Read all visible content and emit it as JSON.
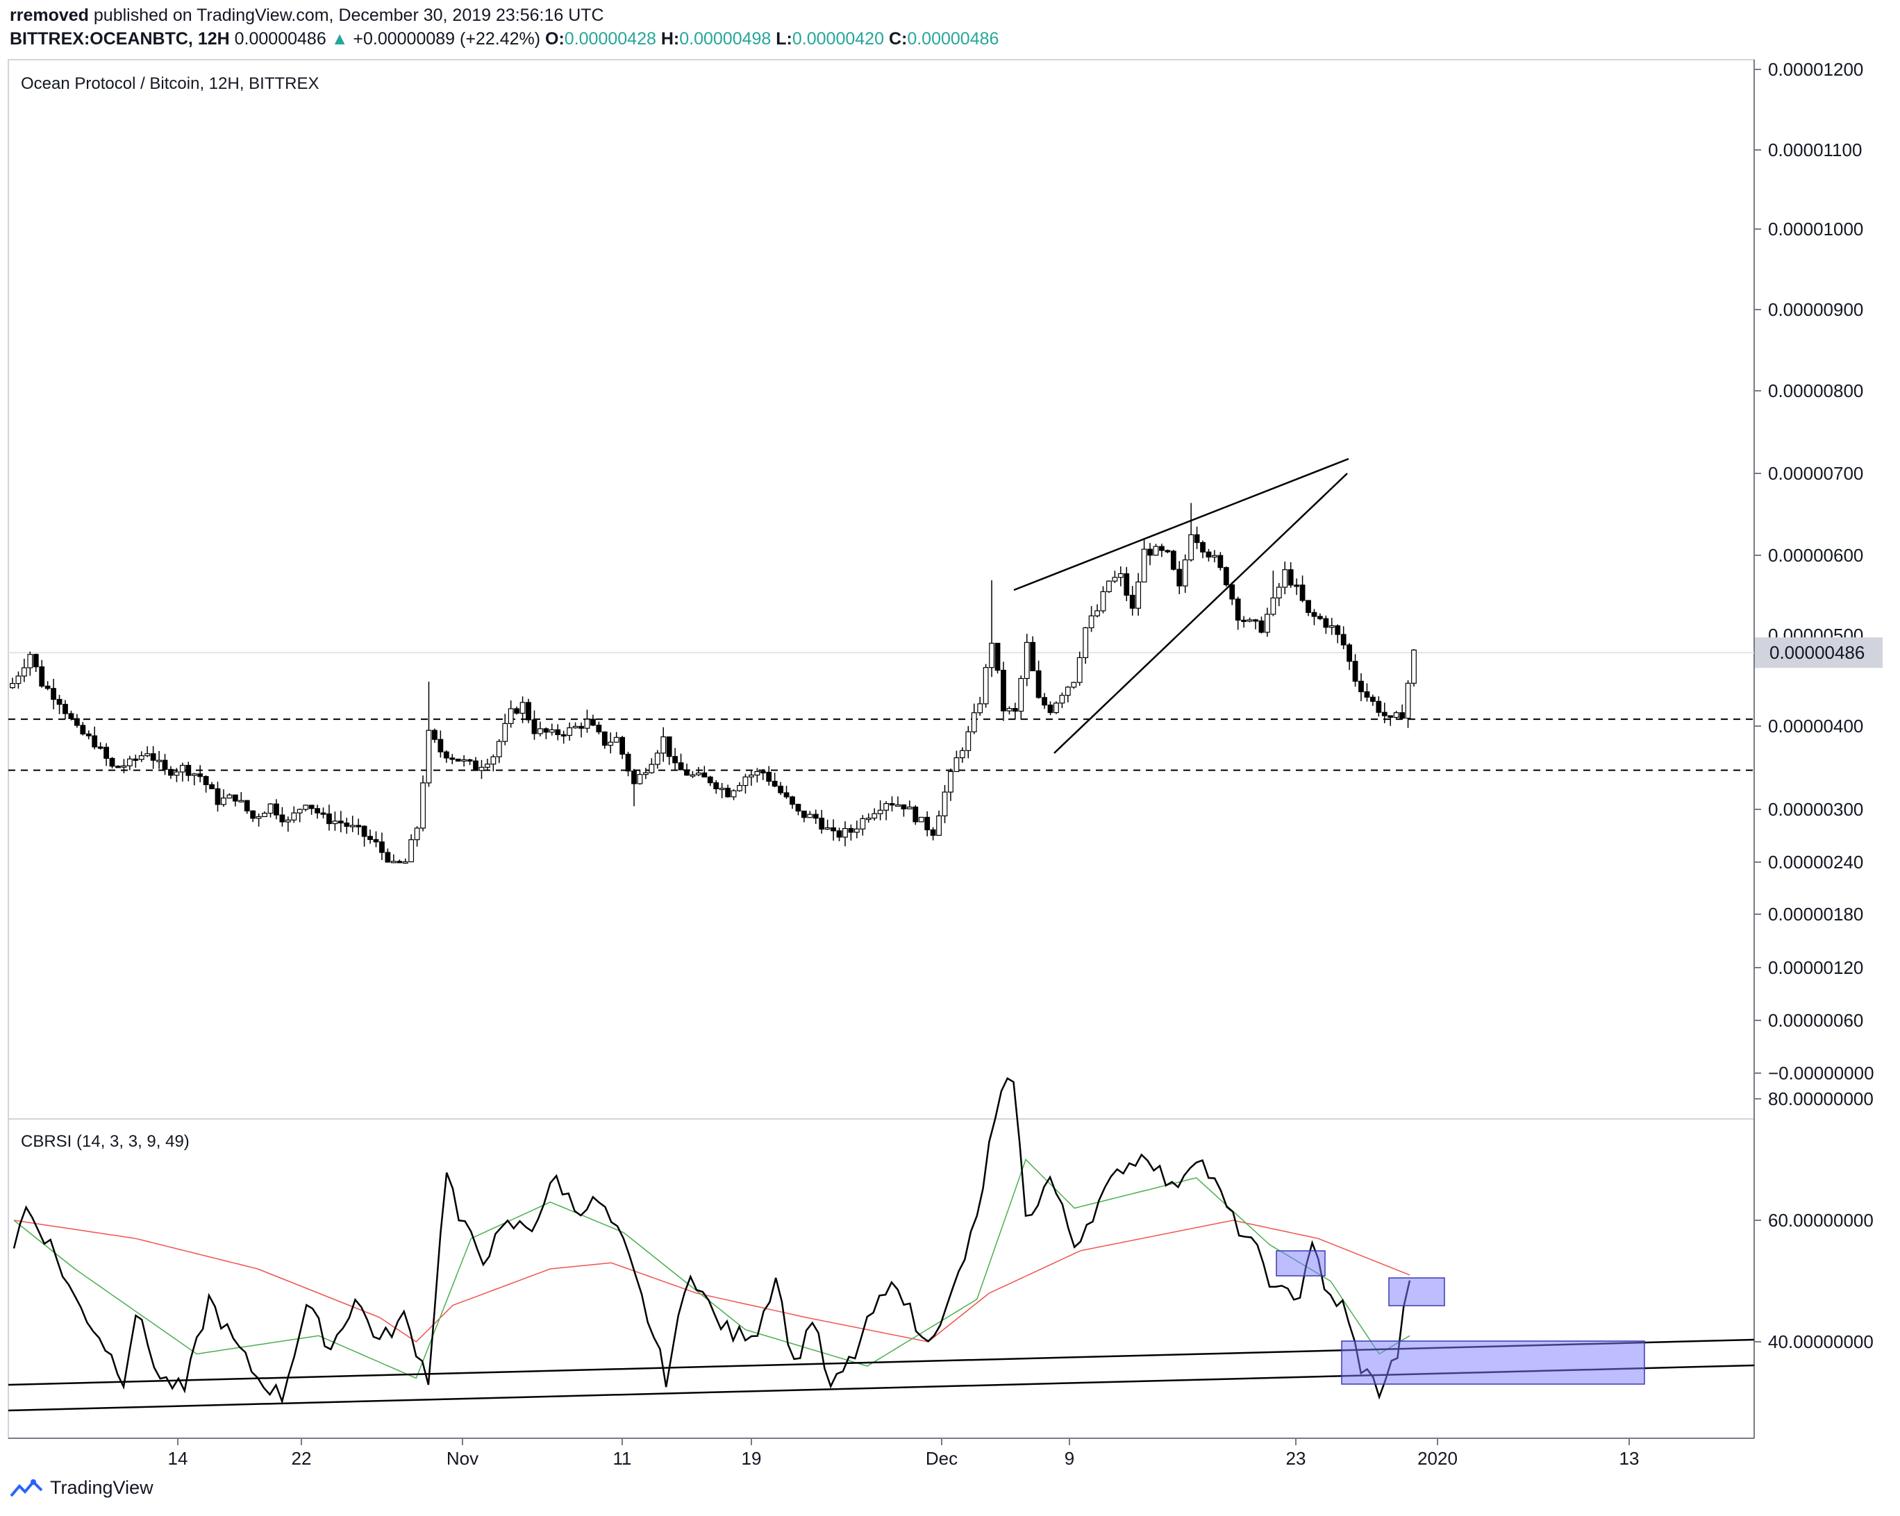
{
  "header": {
    "user": "rremoved",
    "published": "published on TradingView.com, December 30, 2019 23:56:16 UTC",
    "symbol": "BITTREX:OCEANBTC, 12H",
    "last": "0.00000486",
    "change_arrow": "▲",
    "change": "+0.00000089 (+22.42%)",
    "o_label": "O:",
    "o": "0.00000428",
    "h_label": "H:",
    "h": "0.00000498",
    "l_label": "L:",
    "l": "0.00000420",
    "c_label": "C:",
    "c": "0.00000486"
  },
  "brand": {
    "name": "TradingView",
    "icon": "tradingview-logo-icon"
  },
  "colors": {
    "up": "#ffffff",
    "down": "#000000",
    "teal": "#26a69a",
    "signal_green": "#4caf50",
    "ma_red": "#ef5350",
    "box_fill": "#7b7bff"
  },
  "chart_data": [
    {
      "type": "candlestick",
      "title": "Ocean Protocol / Bitcoin, 12H, BITTREX",
      "y_ticks": [
        "0.00001200",
        "0.00001100",
        "0.00001000",
        "0.00000900",
        "0.00000800",
        "0.00000700",
        "0.00000600",
        "0.00000400",
        "0.00000300",
        "0.00000240",
        "0.00000180",
        "0.00000120",
        "0.00000060",
        "−0.00000000"
      ],
      "y_hidden_tick": "0.00000500",
      "price_tag": "0.00000486",
      "x_ticks": [
        "14",
        "22",
        "Nov",
        "11",
        "19",
        "Dec",
        "9",
        "23",
        "2020",
        "13"
      ],
      "horizontal_levels": [
        4.08e-06,
        3.47e-06
      ],
      "close_anchors": [
        [
          0,
          4.5
        ],
        [
          3,
          4.85
        ],
        [
          5,
          4.5
        ],
        [
          8,
          4.3
        ],
        [
          11,
          3.95
        ],
        [
          14,
          3.8
        ],
        [
          17,
          3.5
        ],
        [
          20,
          3.55
        ],
        [
          23,
          3.7
        ],
        [
          26,
          3.45
        ],
        [
          29,
          3.5
        ],
        [
          32,
          3.4
        ],
        [
          35,
          3.1
        ],
        [
          38,
          3.15
        ],
        [
          41,
          2.9
        ],
        [
          44,
          3.05
        ],
        [
          47,
          2.85
        ],
        [
          50,
          3.1
        ],
        [
          53,
          2.9
        ],
        [
          56,
          2.85
        ],
        [
          59,
          2.75
        ],
        [
          62,
          2.6
        ],
        [
          65,
          2.35
        ],
        [
          67,
          2.4
        ],
        [
          69,
          2.8
        ],
        [
          71,
          3.9
        ],
        [
          73,
          3.7
        ],
        [
          76,
          3.6
        ],
        [
          79,
          3.5
        ],
        [
          82,
          3.65
        ],
        [
          85,
          4.15
        ],
        [
          87,
          4.25
        ],
        [
          89,
          3.95
        ],
        [
          92,
          3.9
        ],
        [
          95,
          3.95
        ],
        [
          98,
          4.05
        ],
        [
          101,
          3.8
        ],
        [
          103,
          3.85
        ],
        [
          106,
          3.3
        ],
        [
          109,
          3.6
        ],
        [
          111,
          3.85
        ],
        [
          113,
          3.5
        ],
        [
          116,
          3.4
        ],
        [
          119,
          3.35
        ],
        [
          122,
          3.2
        ],
        [
          125,
          3.4
        ],
        [
          128,
          3.45
        ],
        [
          131,
          3.2
        ],
        [
          134,
          2.95
        ],
        [
          137,
          2.9
        ],
        [
          140,
          2.7
        ],
        [
          143,
          2.75
        ],
        [
          146,
          2.95
        ],
        [
          149,
          3.1
        ],
        [
          152,
          3.05
        ],
        [
          155,
          2.85
        ],
        [
          157,
          2.75
        ],
        [
          159,
          3.2
        ],
        [
          161,
          3.6
        ],
        [
          163,
          3.9
        ],
        [
          165,
          4.3
        ],
        [
          167,
          5.0
        ],
        [
          169,
          4.2
        ],
        [
          171,
          4.15
        ],
        [
          173,
          4.95
        ],
        [
          175,
          4.3
        ],
        [
          177,
          4.2
        ],
        [
          179,
          4.4
        ],
        [
          181,
          4.55
        ],
        [
          183,
          5.15
        ],
        [
          185,
          5.35
        ],
        [
          187,
          5.7
        ],
        [
          189,
          5.75
        ],
        [
          191,
          5.35
        ],
        [
          193,
          6.05
        ],
        [
          195,
          6.05
        ],
        [
          197,
          6.0
        ],
        [
          199,
          5.6
        ],
        [
          201,
          6.3
        ],
        [
          203,
          6.1
        ],
        [
          205,
          5.95
        ],
        [
          207,
          5.7
        ],
        [
          209,
          5.3
        ],
        [
          211,
          5.2
        ],
        [
          213,
          5.15
        ],
        [
          215,
          5.45
        ],
        [
          217,
          5.8
        ],
        [
          219,
          5.6
        ],
        [
          221,
          5.3
        ],
        [
          223,
          5.25
        ],
        [
          225,
          5.15
        ],
        [
          227,
          4.95
        ],
        [
          229,
          4.55
        ],
        [
          231,
          4.35
        ],
        [
          233,
          4.2
        ],
        [
          235,
          4.05
        ],
        [
          237,
          4.15
        ],
        [
          239,
          4.86
        ]
      ]
    },
    {
      "type": "line",
      "title": "CBRSI (14, 3, 3, 9, 49)",
      "y_ticks": [
        "80.00000000",
        "60.00000000",
        "40.00000000"
      ],
      "rsi_anchors": [
        [
          0,
          56
        ],
        [
          2,
          62
        ],
        [
          6,
          56
        ],
        [
          10,
          47
        ],
        [
          14,
          41
        ],
        [
          18,
          34
        ],
        [
          20,
          45
        ],
        [
          24,
          34
        ],
        [
          28,
          32
        ],
        [
          32,
          47
        ],
        [
          36,
          40
        ],
        [
          40,
          34
        ],
        [
          44,
          31
        ],
        [
          48,
          46
        ],
        [
          52,
          39
        ],
        [
          56,
          47
        ],
        [
          60,
          40
        ],
        [
          64,
          44
        ],
        [
          68,
          34
        ],
        [
          71,
          69
        ],
        [
          73,
          60
        ],
        [
          77,
          54
        ],
        [
          81,
          59
        ],
        [
          85,
          59
        ],
        [
          89,
          67
        ],
        [
          92,
          62
        ],
        [
          96,
          63
        ],
        [
          100,
          56
        ],
        [
          104,
          44
        ],
        [
          107,
          34
        ],
        [
          111,
          52
        ],
        [
          115,
          44
        ],
        [
          118,
          41
        ],
        [
          122,
          42
        ],
        [
          125,
          51
        ],
        [
          128,
          36
        ],
        [
          131,
          44
        ],
        [
          134,
          32
        ],
        [
          138,
          38
        ],
        [
          141,
          45
        ],
        [
          145,
          50
        ],
        [
          149,
          40
        ],
        [
          153,
          45
        ],
        [
          156,
          54
        ],
        [
          158,
          60
        ],
        [
          160,
          72
        ],
        [
          162,
          80
        ],
        [
          164,
          84
        ],
        [
          166,
          60
        ],
        [
          170,
          67
        ],
        [
          174,
          56
        ],
        [
          178,
          63
        ],
        [
          182,
          69
        ],
        [
          186,
          71
        ],
        [
          190,
          65
        ],
        [
          194,
          71
        ],
        [
          197,
          66
        ],
        [
          200,
          60
        ],
        [
          203,
          56
        ],
        [
          205,
          53
        ],
        [
          207,
          48
        ],
        [
          211,
          48
        ],
        [
          213,
          57
        ],
        [
          215,
          48
        ],
        [
          218,
          46
        ],
        [
          221,
          36
        ],
        [
          224,
          32
        ],
        [
          227,
          38
        ],
        [
          229,
          51
        ]
      ],
      "ma_anchors": [
        [
          0,
          60
        ],
        [
          20,
          57
        ],
        [
          40,
          52
        ],
        [
          60,
          44
        ],
        [
          66,
          40
        ],
        [
          72,
          46
        ],
        [
          88,
          52
        ],
        [
          98,
          53
        ],
        [
          112,
          48
        ],
        [
          130,
          44
        ],
        [
          150,
          40
        ],
        [
          160,
          48
        ],
        [
          175,
          55
        ],
        [
          200,
          60
        ],
        [
          214,
          57
        ],
        [
          229,
          51
        ]
      ],
      "signal_anchors": [
        [
          0,
          60
        ],
        [
          10,
          52
        ],
        [
          30,
          38
        ],
        [
          50,
          41
        ],
        [
          66,
          34
        ],
        [
          75,
          57
        ],
        [
          88,
          63
        ],
        [
          100,
          58
        ],
        [
          120,
          42
        ],
        [
          140,
          36
        ],
        [
          158,
          47
        ],
        [
          166,
          70
        ],
        [
          174,
          62
        ],
        [
          194,
          67
        ],
        [
          206,
          56
        ],
        [
          216,
          50
        ],
        [
          224,
          38
        ],
        [
          229,
          41
        ]
      ]
    }
  ]
}
